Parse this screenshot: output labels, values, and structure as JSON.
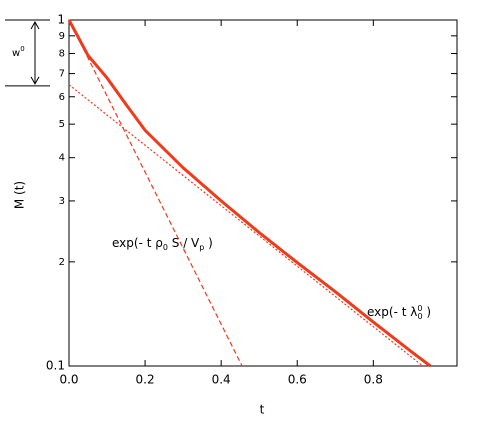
{
  "chart_data": {
    "type": "line",
    "x_label": "t",
    "y_label": "M (t)",
    "log_y": true,
    "xlim": [
      0,
      1.02
    ],
    "ylim": [
      0.1,
      1
    ],
    "xticks": [
      {
        "value": 0,
        "label": "0.0"
      },
      0.2,
      0.4,
      0.6,
      0.8
    ],
    "yticks": [
      0.1,
      {
        "value": 0.2,
        "label": "2"
      },
      {
        "value": 0.3,
        "label": "3"
      },
      {
        "value": 0.4,
        "label": "4"
      },
      {
        "value": 0.5,
        "label": "5"
      },
      {
        "value": 0.6,
        "label": "6"
      },
      {
        "value": 0.7,
        "label": "7"
      },
      {
        "value": 0.8,
        "label": "8"
      },
      {
        "value": 0.9,
        "label": "9"
      },
      1
    ],
    "series": [
      {
        "style": "solid",
        "color": "#ee3b1c",
        "x": [
          0,
          0.05,
          0.1,
          0.15,
          0.2,
          0.3,
          0.4,
          0.5,
          0.6,
          0.7,
          0.8,
          0.9,
          0.95
        ],
        "values": [
          1,
          0.79,
          0.68,
          0.57,
          0.48,
          0.374,
          0.3,
          0.243,
          0.199,
          0.164,
          0.134,
          0.11,
          0.1
        ]
      },
      {
        "style": "dashed",
        "color": "#ee3b1c",
        "x": [
          0,
          0.455
        ],
        "values": [
          1,
          0.1
        ]
      },
      {
        "style": "dotted",
        "color": "#ee3b1c",
        "x": [
          0,
          0.93
        ],
        "values": [
          0.65,
          0.1
        ]
      }
    ],
    "annotations": [
      {
        "parts": [
          "exp(- t ρ",
          "0",
          " S / V",
          "p",
          " )"
        ],
        "shift": [
          0,
          1,
          0,
          1,
          0
        ]
      },
      {
        "parts": [
          "exp(- t λ",
          "0",
          "0",
          " )"
        ],
        "shift": [
          0,
          -1,
          1,
          0
        ]
      }
    ],
    "bracket": {
      "parts": [
        "w",
        "0"
      ],
      "from": 1,
      "to": 0.645
    }
  }
}
